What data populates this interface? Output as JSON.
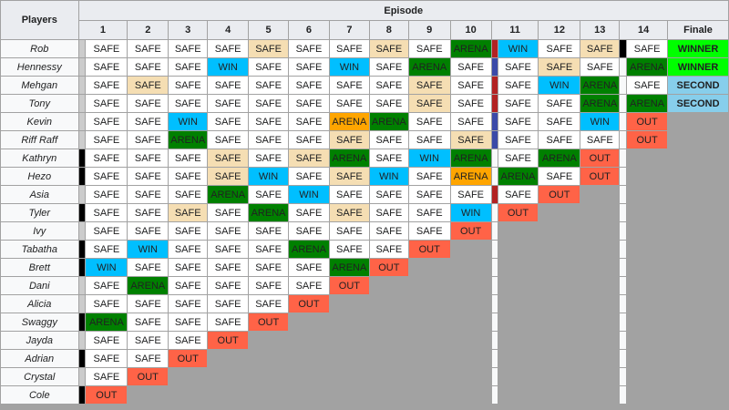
{
  "header": {
    "players_label": "Players",
    "episode_label": "Episode",
    "episodes": [
      "1",
      "2",
      "3",
      "4",
      "5",
      "6",
      "7",
      "8",
      "9",
      "10",
      "11",
      "12",
      "13",
      "14"
    ],
    "finale_label": "Finale"
  },
  "colors": {
    "SAFE": "#ffffff",
    "SAFEO": "#f5deb3",
    "WIN": "#00bfff",
    "ARENA": "#008000",
    "ARENAO": "#ffa500",
    "OUT": "#ff6347",
    "WINNER": "#00ff00",
    "SECOND": "#87ceeb",
    "elimination_black": "#000000",
    "elimination_gray": "#cccccc",
    "elimination_red": "#b22222",
    "elimination_blue": "#3b4aa8"
  },
  "rows": [
    {
      "player": "Rob",
      "bar1": "gray",
      "bar10": "red",
      "bar13": "black",
      "cells": [
        [
          "SAFE",
          "SAFE"
        ],
        [
          "SAFE",
          "SAFE"
        ],
        [
          "SAFE",
          "SAFE"
        ],
        [
          "SAFE",
          "SAFE"
        ],
        [
          "SAFE",
          "SAFEO"
        ],
        [
          "SAFE",
          "SAFE"
        ],
        [
          "SAFE",
          "SAFE"
        ],
        [
          "SAFE",
          "SAFEO"
        ],
        [
          "SAFE",
          "SAFE"
        ],
        [
          "ARENA",
          "ARENA"
        ],
        [
          "WIN",
          "WIN"
        ],
        [
          "SAFE",
          "SAFE"
        ],
        [
          "SAFE",
          "SAFEO"
        ],
        [
          "SAFE",
          "SAFE"
        ],
        [
          "WINNER",
          "WINNER"
        ]
      ]
    },
    {
      "player": "Hennessy",
      "bar1": "gray",
      "bar10": "blue",
      "bar13": "none",
      "cells": [
        [
          "SAFE",
          "SAFE"
        ],
        [
          "SAFE",
          "SAFE"
        ],
        [
          "SAFE",
          "SAFE"
        ],
        [
          "WIN",
          "WIN"
        ],
        [
          "SAFE",
          "SAFE"
        ],
        [
          "SAFE",
          "SAFE"
        ],
        [
          "WIN",
          "WIN"
        ],
        [
          "SAFE",
          "SAFE"
        ],
        [
          "ARENA",
          "ARENA"
        ],
        [
          "SAFE",
          "SAFE"
        ],
        [
          "SAFE",
          "SAFE"
        ],
        [
          "SAFE",
          "SAFEO"
        ],
        [
          "SAFE",
          "SAFE"
        ],
        [
          "ARENA",
          "ARENA"
        ],
        [
          "WINNER",
          "WINNER"
        ]
      ]
    },
    {
      "player": "Mehgan",
      "bar1": "gray",
      "bar10": "red",
      "bar13": "none",
      "cells": [
        [
          "SAFE",
          "SAFE"
        ],
        [
          "SAFE",
          "SAFEO"
        ],
        [
          "SAFE",
          "SAFE"
        ],
        [
          "SAFE",
          "SAFE"
        ],
        [
          "SAFE",
          "SAFE"
        ],
        [
          "SAFE",
          "SAFE"
        ],
        [
          "SAFE",
          "SAFE"
        ],
        [
          "SAFE",
          "SAFE"
        ],
        [
          "SAFE",
          "SAFEO"
        ],
        [
          "SAFE",
          "SAFE"
        ],
        [
          "SAFE",
          "SAFE"
        ],
        [
          "WIN",
          "WIN"
        ],
        [
          "ARENA",
          "ARENA"
        ],
        [
          "SAFE",
          "SAFE"
        ],
        [
          "SECOND",
          "SECOND"
        ]
      ]
    },
    {
      "player": "Tony",
      "bar1": "gray",
      "bar10": "red",
      "bar13": "none",
      "cells": [
        [
          "SAFE",
          "SAFE"
        ],
        [
          "SAFE",
          "SAFE"
        ],
        [
          "SAFE",
          "SAFE"
        ],
        [
          "SAFE",
          "SAFE"
        ],
        [
          "SAFE",
          "SAFE"
        ],
        [
          "SAFE",
          "SAFE"
        ],
        [
          "SAFE",
          "SAFE"
        ],
        [
          "SAFE",
          "SAFE"
        ],
        [
          "SAFE",
          "SAFEO"
        ],
        [
          "SAFE",
          "SAFE"
        ],
        [
          "SAFE",
          "SAFE"
        ],
        [
          "SAFE",
          "SAFE"
        ],
        [
          "ARENA",
          "ARENA"
        ],
        [
          "ARENA",
          "ARENA"
        ],
        [
          "SECOND",
          "SECOND"
        ]
      ]
    },
    {
      "player": "Kevin",
      "bar1": "gray",
      "bar10": "blue",
      "bar13": "none",
      "cells": [
        [
          "SAFE",
          "SAFE"
        ],
        [
          "SAFE",
          "SAFE"
        ],
        [
          "WIN",
          "WIN"
        ],
        [
          "SAFE",
          "SAFE"
        ],
        [
          "SAFE",
          "SAFE"
        ],
        [
          "SAFE",
          "SAFE"
        ],
        [
          "ARENA",
          "ARENAO"
        ],
        [
          "ARENA",
          "ARENA"
        ],
        [
          "SAFE",
          "SAFE"
        ],
        [
          "SAFE",
          "SAFE"
        ],
        [
          "SAFE",
          "SAFE"
        ],
        [
          "SAFE",
          "SAFE"
        ],
        [
          "WIN",
          "WIN"
        ],
        [
          "OUT",
          "OUT"
        ]
      ]
    },
    {
      "player": "Riff Raff",
      "bar1": "gray",
      "bar10": "blue",
      "bar13": "none",
      "cells": [
        [
          "SAFE",
          "SAFE"
        ],
        [
          "SAFE",
          "SAFE"
        ],
        [
          "ARENA",
          "ARENA"
        ],
        [
          "SAFE",
          "SAFE"
        ],
        [
          "SAFE",
          "SAFE"
        ],
        [
          "SAFE",
          "SAFE"
        ],
        [
          "SAFE",
          "SAFEO"
        ],
        [
          "SAFE",
          "SAFE"
        ],
        [
          "SAFE",
          "SAFE"
        ],
        [
          "SAFE",
          "SAFEO"
        ],
        [
          "SAFE",
          "SAFE"
        ],
        [
          "SAFE",
          "SAFE"
        ],
        [
          "SAFE",
          "SAFE"
        ],
        [
          "OUT",
          "OUT"
        ]
      ]
    },
    {
      "player": "Kathryn",
      "bar1": "black",
      "bar10": "none",
      "bar13": "none",
      "cells": [
        [
          "SAFE",
          "SAFE"
        ],
        [
          "SAFE",
          "SAFE"
        ],
        [
          "SAFE",
          "SAFE"
        ],
        [
          "SAFE",
          "SAFEO"
        ],
        [
          "SAFE",
          "SAFE"
        ],
        [
          "SAFE",
          "SAFEO"
        ],
        [
          "ARENA",
          "ARENA"
        ],
        [
          "SAFE",
          "SAFE"
        ],
        [
          "WIN",
          "WIN"
        ],
        [
          "ARENA",
          "ARENA"
        ],
        [
          "SAFE",
          "SAFE"
        ],
        [
          "ARENA",
          "ARENA"
        ],
        [
          "OUT",
          "OUT"
        ]
      ]
    },
    {
      "player": "Hezo",
      "bar1": "black",
      "bar10": "none",
      "bar13": "none",
      "cells": [
        [
          "SAFE",
          "SAFE"
        ],
        [
          "SAFE",
          "SAFE"
        ],
        [
          "SAFE",
          "SAFE"
        ],
        [
          "SAFE",
          "SAFEO"
        ],
        [
          "WIN",
          "WIN"
        ],
        [
          "SAFE",
          "SAFE"
        ],
        [
          "SAFE",
          "SAFEO"
        ],
        [
          "WIN",
          "WIN"
        ],
        [
          "SAFE",
          "SAFE"
        ],
        [
          "ARENA",
          "ARENAO"
        ],
        [
          "ARENA",
          "ARENA"
        ],
        [
          "SAFE",
          "SAFE"
        ],
        [
          "OUT",
          "OUT"
        ]
      ]
    },
    {
      "player": "Asia",
      "bar1": "gray",
      "bar10": "red",
      "bar13": "none",
      "cells": [
        [
          "SAFE",
          "SAFE"
        ],
        [
          "SAFE",
          "SAFE"
        ],
        [
          "SAFE",
          "SAFE"
        ],
        [
          "ARENA",
          "ARENA"
        ],
        [
          "SAFE",
          "SAFE"
        ],
        [
          "WIN",
          "WIN"
        ],
        [
          "SAFE",
          "SAFE"
        ],
        [
          "SAFE",
          "SAFE"
        ],
        [
          "SAFE",
          "SAFE"
        ],
        [
          "SAFE",
          "SAFE"
        ],
        [
          "SAFE",
          "SAFE"
        ],
        [
          "OUT",
          "OUT"
        ]
      ]
    },
    {
      "player": "Tyler",
      "bar1": "black",
      "bar10": "none",
      "bar13": "none",
      "cells": [
        [
          "SAFE",
          "SAFE"
        ],
        [
          "SAFE",
          "SAFE"
        ],
        [
          "SAFE",
          "SAFEO"
        ],
        [
          "SAFE",
          "SAFE"
        ],
        [
          "ARENA",
          "ARENA"
        ],
        [
          "SAFE",
          "SAFE"
        ],
        [
          "SAFE",
          "SAFEO"
        ],
        [
          "SAFE",
          "SAFE"
        ],
        [
          "SAFE",
          "SAFE"
        ],
        [
          "WIN",
          "WIN"
        ],
        [
          "OUT",
          "OUT"
        ]
      ]
    },
    {
      "player": "Ivy",
      "bar1": "gray",
      "bar10": "none",
      "bar13": "none",
      "cells": [
        [
          "SAFE",
          "SAFE"
        ],
        [
          "SAFE",
          "SAFE"
        ],
        [
          "SAFE",
          "SAFE"
        ],
        [
          "SAFE",
          "SAFE"
        ],
        [
          "SAFE",
          "SAFE"
        ],
        [
          "SAFE",
          "SAFE"
        ],
        [
          "SAFE",
          "SAFE"
        ],
        [
          "SAFE",
          "SAFE"
        ],
        [
          "SAFE",
          "SAFE"
        ],
        [
          "OUT",
          "OUT"
        ]
      ]
    },
    {
      "player": "Tabatha",
      "bar1": "black",
      "bar10": "none",
      "bar13": "none",
      "cells": [
        [
          "SAFE",
          "SAFE"
        ],
        [
          "WIN",
          "WIN"
        ],
        [
          "SAFE",
          "SAFE"
        ],
        [
          "SAFE",
          "SAFE"
        ],
        [
          "SAFE",
          "SAFE"
        ],
        [
          "ARENA",
          "ARENA"
        ],
        [
          "SAFE",
          "SAFE"
        ],
        [
          "SAFE",
          "SAFE"
        ],
        [
          "OUT",
          "OUT"
        ]
      ]
    },
    {
      "player": "Brett",
      "bar1": "black",
      "bar10": "none",
      "bar13": "none",
      "cells": [
        [
          "WIN",
          "WIN"
        ],
        [
          "SAFE",
          "SAFE"
        ],
        [
          "SAFE",
          "SAFE"
        ],
        [
          "SAFE",
          "SAFE"
        ],
        [
          "SAFE",
          "SAFE"
        ],
        [
          "SAFE",
          "SAFE"
        ],
        [
          "ARENA",
          "ARENA"
        ],
        [
          "OUT",
          "OUT"
        ]
      ]
    },
    {
      "player": "Dani",
      "bar1": "gray",
      "bar10": "none",
      "bar13": "none",
      "cells": [
        [
          "SAFE",
          "SAFE"
        ],
        [
          "ARENA",
          "ARENA"
        ],
        [
          "SAFE",
          "SAFE"
        ],
        [
          "SAFE",
          "SAFE"
        ],
        [
          "SAFE",
          "SAFE"
        ],
        [
          "SAFE",
          "SAFE"
        ],
        [
          "OUT",
          "OUT"
        ]
      ]
    },
    {
      "player": "Alicia",
      "bar1": "gray",
      "bar10": "none",
      "bar13": "none",
      "cells": [
        [
          "SAFE",
          "SAFE"
        ],
        [
          "SAFE",
          "SAFE"
        ],
        [
          "SAFE",
          "SAFE"
        ],
        [
          "SAFE",
          "SAFE"
        ],
        [
          "SAFE",
          "SAFE"
        ],
        [
          "OUT",
          "OUT"
        ]
      ]
    },
    {
      "player": "Swaggy",
      "bar1": "black",
      "bar10": "none",
      "bar13": "none",
      "cells": [
        [
          "ARENA",
          "ARENA"
        ],
        [
          "SAFE",
          "SAFE"
        ],
        [
          "SAFE",
          "SAFE"
        ],
        [
          "SAFE",
          "SAFE"
        ],
        [
          "OUT",
          "OUT"
        ]
      ]
    },
    {
      "player": "Jayda",
      "bar1": "gray",
      "bar10": "none",
      "bar13": "none",
      "cells": [
        [
          "SAFE",
          "SAFE"
        ],
        [
          "SAFE",
          "SAFE"
        ],
        [
          "SAFE",
          "SAFE"
        ],
        [
          "OUT",
          "OUT"
        ]
      ]
    },
    {
      "player": "Adrian",
      "bar1": "black",
      "bar10": "none",
      "bar13": "none",
      "cells": [
        [
          "SAFE",
          "SAFE"
        ],
        [
          "SAFE",
          "SAFE"
        ],
        [
          "OUT",
          "OUT"
        ]
      ]
    },
    {
      "player": "Crystal",
      "bar1": "gray",
      "bar10": "none",
      "bar13": "none",
      "cells": [
        [
          "SAFE",
          "SAFE"
        ],
        [
          "OUT",
          "OUT"
        ]
      ]
    },
    {
      "player": "Cole",
      "bar1": "black",
      "bar10": "none",
      "bar13": "none",
      "cells": [
        [
          "OUT",
          "OUT"
        ]
      ]
    }
  ]
}
